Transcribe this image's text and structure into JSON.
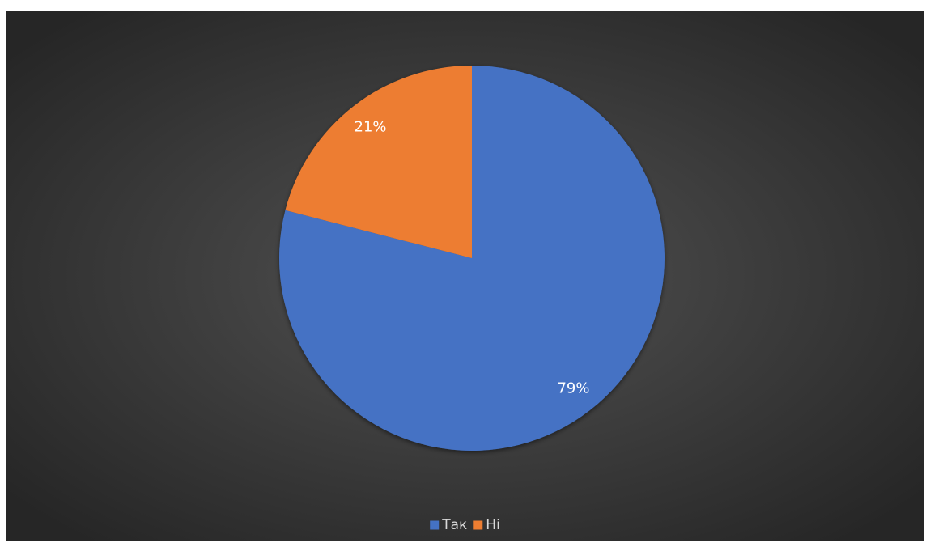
{
  "chart_data": {
    "type": "pie",
    "categories": [
      "Так",
      "Ні"
    ],
    "values": [
      79,
      21
    ],
    "value_labels": [
      "79%",
      "21%"
    ],
    "colors": [
      "#4472c4",
      "#ed7d31"
    ],
    "legend": "bottom"
  }
}
